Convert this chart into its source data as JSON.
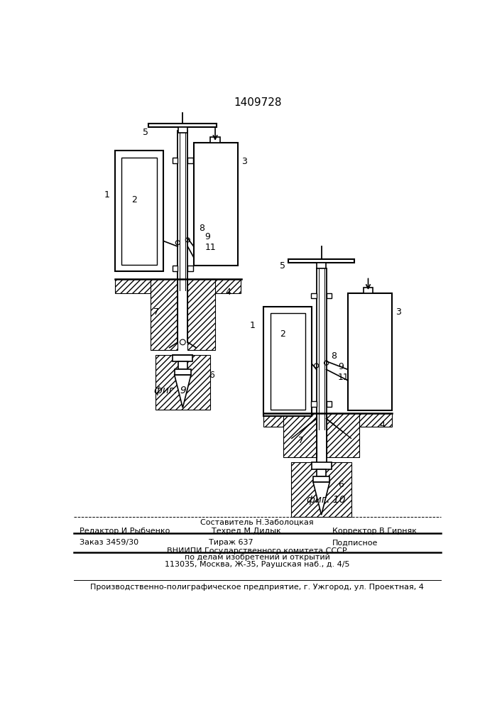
{
  "title_number": "1409728",
  "fig9_label": "фиг. 9",
  "fig10_label": "фиг. 10",
  "bg_color": "#ffffff",
  "line_color": "#000000",
  "footer_sestavitel": "Составитель Н.Заболоцкая",
  "footer_redaktor": "Редактор И.Рыбченко",
  "footer_tehred": "Техред М.Дидык",
  "footer_korrektor": "Корректор В.Гирняк",
  "footer_zakaz": "Заказ 3459/30",
  "footer_tirazh": "Тираж 637",
  "footer_podpisnoe": "Подписное",
  "footer_vniipil1": "ВНИИПИ Государственного комитета СССР",
  "footer_vniipil2": "по делам изобретений и открытий",
  "footer_vniipil3": "113035, Москва, Ж-35, Раушская наб., д. 4/5",
  "footer_predpriyatie": "Производственно-полиграфическое предприятие, г. Ужгород, ул. Проектная, 4"
}
